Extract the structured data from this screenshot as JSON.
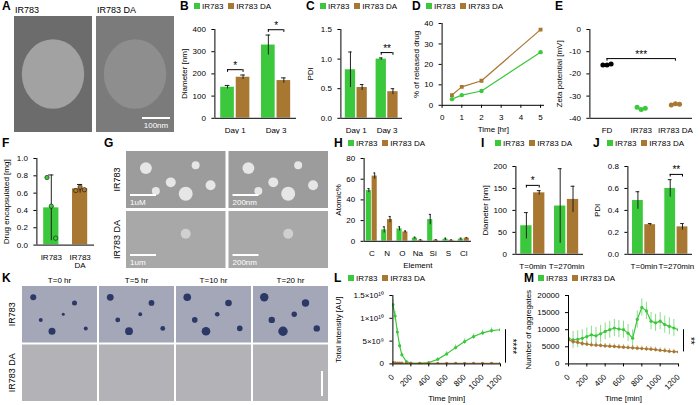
{
  "chart_data": [
    {
      "panel": "A",
      "type": "image",
      "images": [
        {
          "label": "IR783"
        },
        {
          "label": "IR783 DA",
          "scale_bar": "100nm"
        }
      ]
    },
    {
      "panel": "B",
      "type": "bar",
      "categories": [
        "Day 1",
        "Day 3"
      ],
      "y_label": "Diameter [nm]",
      "ylim": [
        0,
        400
      ],
      "yticks": [
        0,
        100,
        200,
        300,
        400
      ],
      "legend": "top",
      "series": [
        {
          "name": "IR783",
          "color": "#3cc83c",
          "values": [
            140,
            330
          ],
          "errors": [
            8,
            45
          ]
        },
        {
          "name": "IR783 DA",
          "color": "#a87832",
          "values": [
            185,
            170
          ],
          "errors": [
            10,
            12
          ]
        }
      ],
      "annotations": [
        {
          "text": "*",
          "category": "Day 1"
        },
        {
          "text": "*",
          "category": "Day 3"
        }
      ]
    },
    {
      "panel": "C",
      "type": "bar",
      "categories": [
        "Day 1",
        "Day 3"
      ],
      "y_label": "PDI",
      "ylim": [
        0,
        1.5
      ],
      "yticks": [
        {
          "value": 0,
          "label": "0.0"
        },
        0.5,
        {
          "value": 1,
          "label": "1.0"
        },
        1.5
      ],
      "legend": "top",
      "series": [
        {
          "name": "IR783",
          "color": "#3cc83c",
          "values": [
            0.82,
            1.0
          ],
          "errors": [
            0.3,
            0.02
          ]
        },
        {
          "name": "IR783 DA",
          "color": "#a87832",
          "values": [
            0.52,
            0.45
          ],
          "errors": [
            0.05,
            0.05
          ]
        }
      ],
      "annotations": [
        {
          "text": "**",
          "category": "Day 3"
        }
      ]
    },
    {
      "panel": "D",
      "type": "line",
      "x_label": "Time [hr]",
      "y_label": "% of released drug",
      "x": [
        0.5,
        1,
        2,
        5
      ],
      "xlim": [
        0,
        5.2
      ],
      "xticks": [
        0,
        1,
        2,
        3,
        4,
        5
      ],
      "ylim": [
        0,
        40
      ],
      "yticks": [
        0,
        10,
        20,
        30,
        40
      ],
      "legend": "top",
      "series": [
        {
          "name": "IR783",
          "color": "#3cc83c",
          "marker": "circle",
          "values": [
            3,
            5,
            7,
            26
          ]
        },
        {
          "name": "IR783 DA",
          "color": "#a87832",
          "marker": "square",
          "values": [
            5,
            9,
            12,
            37
          ]
        }
      ]
    },
    {
      "panel": "E",
      "type": "scatter",
      "categories": [
        "FD",
        "IR783",
        "IR783 DA"
      ],
      "colors": [
        "#000000",
        "#3cc83c",
        "#a87832"
      ],
      "y_label": "Zeta potential [mV]",
      "ylim": [
        -40,
        0
      ],
      "yticks": [
        -40,
        -30,
        -20,
        -10,
        0
      ],
      "values": [
        [
          -16,
          -16,
          -15.5
        ],
        [
          -35,
          -36,
          -35.5
        ],
        [
          -34,
          -33.5,
          -33.7
        ]
      ],
      "annotations": [
        {
          "text": "***",
          "from": "FD",
          "to": "IR783 DA"
        }
      ]
    },
    {
      "panel": "F",
      "type": "bar",
      "categories": [
        "IR783",
        "IR783 DA"
      ],
      "colors": [
        "#3cc83c",
        "#a87832"
      ],
      "y_label": "Drug encapsulated [mg]",
      "ylim": [
        0,
        1
      ],
      "yticks": [
        {
          "value": 0,
          "label": "0.0"
        },
        0.2,
        0.4,
        0.6,
        0.8,
        {
          "value": 1,
          "label": "1.0"
        }
      ],
      "values": [
        0.43,
        0.65
      ],
      "errors": [
        0.38,
        0.05
      ],
      "points": [
        [
          0.78,
          0.45,
          0.08
        ],
        [
          0.63,
          0.67,
          0.64
        ]
      ]
    },
    {
      "panel": "G",
      "type": "image",
      "rows": [
        "IR783",
        "IR783 DA"
      ],
      "images": [
        [
          {
            "scale_bar": "1uM"
          },
          {
            "scale_bar": "200nm"
          }
        ],
        [
          {
            "scale_bar": "1um"
          },
          {
            "scale_bar": "200nm"
          }
        ]
      ]
    },
    {
      "panel": "H",
      "type": "bar",
      "categories": [
        "C",
        "N",
        "O",
        "Na",
        "Si",
        "S",
        "Cl"
      ],
      "x_label": "Element",
      "y_label": "Atomic%",
      "ylim": [
        0,
        80
      ],
      "yticks": [
        0,
        20,
        40,
        60,
        80
      ],
      "legend": "top",
      "series": [
        {
          "name": "IR783",
          "color": "#3cc83c",
          "values": [
            49,
            11,
            12,
            3,
            21,
            2,
            2
          ],
          "errors": [
            2,
            3,
            2,
            1,
            5,
            1,
            1
          ]
        },
        {
          "name": "IR783 DA",
          "color": "#a87832",
          "values": [
            63,
            21,
            9,
            1,
            1,
            1,
            3
          ],
          "errors": [
            3,
            3,
            1,
            0.5,
            0.5,
            0.3,
            0.5
          ]
        }
      ]
    },
    {
      "panel": "I",
      "type": "bar",
      "categories": [
        "T=0min",
        "T=270min"
      ],
      "y_label": "Diameter [nm]",
      "ylim": [
        0,
        200
      ],
      "yticks": [
        0,
        50,
        100,
        150,
        200
      ],
      "legend": "top",
      "series": [
        {
          "name": "IR783",
          "color": "#3cc83c",
          "values": [
            65,
            110
          ],
          "errors": [
            30,
            85
          ]
        },
        {
          "name": "IR783 DA",
          "color": "#a87832",
          "values": [
            140,
            125
          ],
          "errors": [
            5,
            30
          ]
        }
      ],
      "annotations": [
        {
          "text": "*",
          "category": "T=0min"
        }
      ]
    },
    {
      "panel": "J",
      "type": "bar",
      "categories": [
        "T=0min",
        "T=270min"
      ],
      "y_label": "PDI",
      "ylim": [
        0,
        0.8
      ],
      "yticks": [
        {
          "value": 0,
          "label": "0.0"
        },
        0.2,
        0.4,
        0.6,
        0.8
      ],
      "legend": "top",
      "series": [
        {
          "name": "IR783",
          "color": "#3cc83c",
          "values": [
            0.49,
            0.6
          ],
          "errors": [
            0.08,
            0.08
          ]
        },
        {
          "name": "IR783 DA",
          "color": "#a87832",
          "values": [
            0.27,
            0.25
          ],
          "errors": [
            0.01,
            0.03
          ]
        }
      ],
      "annotations": [
        {
          "text": "**",
          "category": "T=270min"
        }
      ]
    },
    {
      "panel": "K",
      "type": "image",
      "rows": [
        "IR783",
        "IR783 DA"
      ],
      "columns": [
        "T=0 hr",
        "T=5 hr",
        "T=10 hr",
        "T=20 hr"
      ]
    },
    {
      "panel": "L",
      "type": "line",
      "x_label": "Time [min]",
      "y_label": "Total intensity [AU]",
      "xlim": [
        0,
        1200
      ],
      "xticks": [
        0,
        200,
        400,
        600,
        800,
        1000,
        1200
      ],
      "ylim": [
        0,
        15000000000
      ],
      "yticks": [
        0,
        {
          "value": 5000000000,
          "label": "5×10⁹"
        },
        {
          "value": 10000000000,
          "label": "1×10¹⁰"
        },
        {
          "value": 15000000000,
          "label": "1.5×10¹⁰"
        }
      ],
      "legend": "top",
      "x": [
        0,
        25,
        50,
        75,
        100,
        150,
        200,
        300,
        400,
        500,
        600,
        700,
        800,
        900,
        1000,
        1100,
        1200
      ],
      "series": [
        {
          "name": "IR783",
          "color": "#3cc83c",
          "marker": "circle",
          "values": [
            13000000000,
            10500000000,
            7000000000,
            4000000000,
            2000000000,
            500000000,
            200000000,
            100000000,
            300000000,
            1000000000,
            2200000000,
            3600000000,
            4900000000,
            6000000000,
            6800000000,
            7300000000,
            7500000000
          ],
          "errors": [
            1000000000,
            1000000000,
            800000000,
            600000000,
            400000000,
            200000000,
            100000000,
            100000000,
            200000000,
            400000000,
            500000000,
            600000000,
            600000000,
            600000000,
            600000000,
            600000000,
            600000000
          ]
        },
        {
          "name": "IR783 DA",
          "color": "#a87832",
          "marker": "circle",
          "values": [
            300000000,
            250000000,
            200000000,
            180000000,
            160000000,
            150000000,
            150000000,
            150000000,
            150000000,
            150000000,
            150000000,
            150000000,
            150000000,
            150000000,
            150000000,
            150000000,
            150000000
          ],
          "errors": [
            50000000,
            50000000,
            50000000,
            50000000,
            50000000,
            50000000,
            50000000,
            50000000,
            50000000,
            50000000,
            50000000,
            50000000,
            50000000,
            50000000,
            50000000,
            50000000,
            50000000
          ]
        }
      ],
      "annotations": [
        {
          "text": "****"
        }
      ]
    },
    {
      "panel": "M",
      "type": "line",
      "x_label": "Time [min]",
      "y_label": "Number of aggregates",
      "xlim": [
        0,
        1200
      ],
      "xticks": [
        0,
        200,
        400,
        600,
        800,
        1000,
        1200
      ],
      "ylim": [
        0,
        20000
      ],
      "yticks": [
        0,
        5000,
        10000,
        15000,
        20000
      ],
      "legend": "top",
      "x": [
        0,
        50,
        100,
        150,
        200,
        250,
        300,
        350,
        400,
        450,
        500,
        550,
        600,
        650,
        700,
        750,
        800,
        850,
        900,
        950,
        1000,
        1050,
        1100,
        1150,
        1200
      ],
      "series": [
        {
          "name": "IR783",
          "color": "#3cc83c",
          "marker": "circle",
          "values": [
            7500,
            7000,
            7200,
            7500,
            8000,
            8500,
            8200,
            8800,
            9500,
            10000,
            10500,
            10200,
            10000,
            9000,
            7500,
            13000,
            16500,
            15500,
            12500,
            12000,
            12500,
            11500,
            11000,
            10500,
            10000
          ],
          "errors": [
            2500,
            2500,
            2500,
            2500,
            2500,
            2500,
            2500,
            2500,
            2500,
            2500,
            2500,
            2500,
            2500,
            2500,
            2500,
            2500,
            2500,
            2500,
            2500,
            2500,
            2500,
            2500,
            2500,
            2500,
            2500
          ]
        },
        {
          "name": "IR783 DA",
          "color": "#a87832",
          "marker": "circle",
          "values": [
            7000,
            6500,
            6300,
            6000,
            5800,
            5600,
            5500,
            5400,
            5300,
            5200,
            5100,
            5000,
            4900,
            4800,
            4700,
            4600,
            4500,
            4400,
            4300,
            4200,
            4000,
            3900,
            3700,
            3600,
            3500
          ],
          "errors": [
            700,
            700,
            700,
            700,
            700,
            700,
            700,
            700,
            700,
            700,
            700,
            700,
            700,
            700,
            700,
            700,
            700,
            700,
            700,
            700,
            700,
            700,
            700,
            700,
            700
          ]
        }
      ],
      "annotations": [
        {
          "text": "**"
        }
      ]
    }
  ]
}
